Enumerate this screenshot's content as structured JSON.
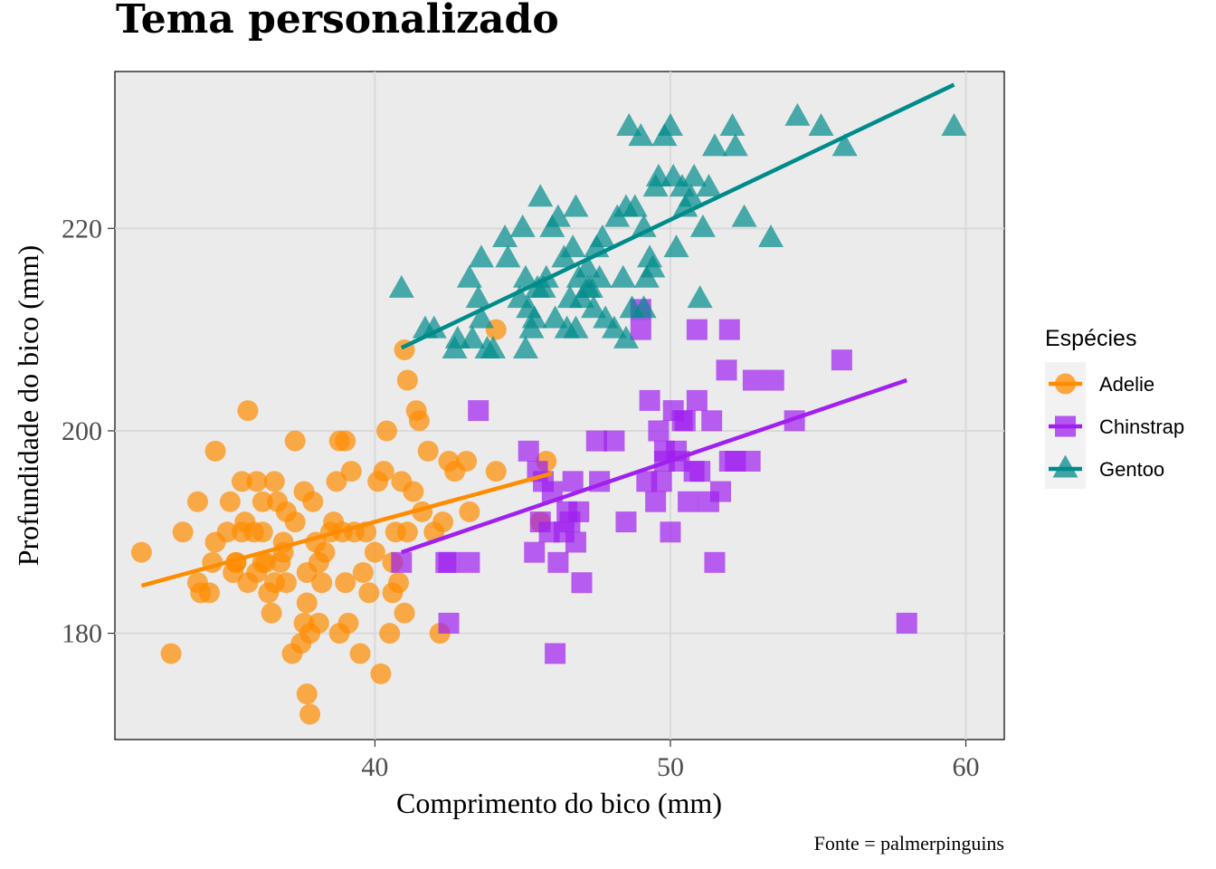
{
  "chart_data": {
    "type": "scatter",
    "title": "Tema personalizado",
    "xlabel": "Comprimento do bico (mm)",
    "ylabel": "Profundidade do bico (mm)",
    "caption": "Fonte = palmerpinguins",
    "xlim": [
      31.2,
      61.3
    ],
    "ylim": [
      169.5,
      235.5
    ],
    "x_ticks": [
      40,
      50,
      60
    ],
    "y_ticks": [
      180,
      200,
      220
    ],
    "x_tick_labels": [
      "40",
      "50",
      "60"
    ],
    "y_tick_labels": [
      "180",
      "200",
      "220"
    ],
    "grid": true,
    "legend": {
      "title": "Espécies",
      "position": "right"
    },
    "series": [
      {
        "name": "Adelie",
        "color": "#FF8C00",
        "marker": "circle",
        "trend": [
          [
            32.1,
            184.7
          ],
          [
            46.0,
            195.8
          ]
        ],
        "points": [
          [
            32.1,
            188
          ],
          [
            33.1,
            178
          ],
          [
            33.5,
            190
          ],
          [
            34.0,
            185
          ],
          [
            34.1,
            184
          ],
          [
            34.4,
            184
          ],
          [
            34.5,
            187
          ],
          [
            34.6,
            189
          ],
          [
            34.6,
            198
          ],
          [
            34.0,
            193
          ],
          [
            35.0,
            190
          ],
          [
            35.1,
            193
          ],
          [
            35.2,
            186
          ],
          [
            35.3,
            187
          ],
          [
            35.5,
            190
          ],
          [
            35.5,
            195
          ],
          [
            35.6,
            191
          ],
          [
            35.7,
            202
          ],
          [
            35.7,
            185
          ],
          [
            35.9,
            190
          ],
          [
            36.0,
            186
          ],
          [
            36.0,
            195
          ],
          [
            36.2,
            187
          ],
          [
            36.2,
            190
          ],
          [
            36.3,
            187
          ],
          [
            36.4,
            184
          ],
          [
            36.5,
            182
          ],
          [
            36.6,
            185
          ],
          [
            36.6,
            195
          ],
          [
            36.7,
            193
          ],
          [
            36.8,
            187
          ],
          [
            36.9,
            189
          ],
          [
            37.0,
            185
          ],
          [
            37.2,
            178
          ],
          [
            37.3,
            191
          ],
          [
            37.3,
            199
          ],
          [
            37.5,
            179
          ],
          [
            37.6,
            181
          ],
          [
            37.6,
            194
          ],
          [
            37.7,
            183
          ],
          [
            37.7,
            186
          ],
          [
            37.7,
            174
          ],
          [
            37.8,
            180
          ],
          [
            37.8,
            172
          ],
          [
            37.9,
            193
          ],
          [
            38.0,
            189
          ],
          [
            38.1,
            181
          ],
          [
            38.2,
            185
          ],
          [
            38.3,
            188
          ],
          [
            38.5,
            190
          ],
          [
            38.6,
            191
          ],
          [
            38.7,
            195
          ],
          [
            38.8,
            180
          ],
          [
            38.9,
            190
          ],
          [
            39.0,
            185
          ],
          [
            39.1,
            181
          ],
          [
            39.2,
            196
          ],
          [
            39.3,
            190
          ],
          [
            39.5,
            178
          ],
          [
            39.6,
            186
          ],
          [
            39.7,
            190
          ],
          [
            39.8,
            184
          ],
          [
            40.0,
            188
          ],
          [
            40.1,
            195
          ],
          [
            40.2,
            176
          ],
          [
            40.3,
            196
          ],
          [
            40.5,
            180
          ],
          [
            40.6,
            187
          ],
          [
            40.7,
            190
          ],
          [
            40.8,
            185
          ],
          [
            40.9,
            195
          ],
          [
            41.0,
            182
          ],
          [
            41.1,
            190
          ],
          [
            41.1,
            205
          ],
          [
            41.3,
            194
          ],
          [
            41.4,
            202
          ],
          [
            41.5,
            201
          ],
          [
            41.6,
            192
          ],
          [
            41.8,
            198
          ],
          [
            42.0,
            190
          ],
          [
            42.2,
            180
          ],
          [
            42.3,
            191
          ],
          [
            42.5,
            197
          ],
          [
            42.7,
            196
          ],
          [
            43.1,
            197
          ],
          [
            43.2,
            192
          ],
          [
            44.1,
            196
          ],
          [
            44.1,
            210
          ],
          [
            45.6,
            191
          ],
          [
            45.8,
            197
          ],
          [
            39.0,
            199
          ],
          [
            41.0,
            208
          ],
          [
            40.4,
            200
          ],
          [
            38.8,
            199
          ],
          [
            36.9,
            188
          ],
          [
            35.3,
            187
          ],
          [
            37.0,
            192
          ],
          [
            38.1,
            187
          ],
          [
            36.2,
            193
          ],
          [
            40.6,
            184
          ]
        ]
      },
      {
        "name": "Chinstrap",
        "color": "#A020F0",
        "marker": "square",
        "trend": [
          [
            40.9,
            188.0
          ],
          [
            58.0,
            205.0
          ]
        ],
        "points": [
          [
            40.9,
            187
          ],
          [
            42.4,
            187
          ],
          [
            42.5,
            187
          ],
          [
            42.5,
            181
          ],
          [
            43.2,
            187
          ],
          [
            43.5,
            202
          ],
          [
            45.2,
            198
          ],
          [
            45.4,
            188
          ],
          [
            45.5,
            196
          ],
          [
            45.6,
            191
          ],
          [
            45.7,
            195
          ],
          [
            45.9,
            190
          ],
          [
            46.0,
            194
          ],
          [
            46.1,
            178
          ],
          [
            46.2,
            187
          ],
          [
            46.4,
            190
          ],
          [
            46.5,
            192
          ],
          [
            46.6,
            191
          ],
          [
            46.7,
            195
          ],
          [
            46.8,
            189
          ],
          [
            46.9,
            192
          ],
          [
            47.0,
            185
          ],
          [
            47.5,
            199
          ],
          [
            47.6,
            195
          ],
          [
            48.1,
            199
          ],
          [
            48.5,
            191
          ],
          [
            49.0,
            210
          ],
          [
            49.0,
            212
          ],
          [
            49.2,
            195
          ],
          [
            49.3,
            203
          ],
          [
            49.5,
            193
          ],
          [
            49.6,
            200
          ],
          [
            49.7,
            195
          ],
          [
            49.8,
            198
          ],
          [
            50.0,
            190
          ],
          [
            50.1,
            202
          ],
          [
            50.2,
            198
          ],
          [
            50.3,
            197
          ],
          [
            50.4,
            201
          ],
          [
            50.5,
            201
          ],
          [
            50.6,
            193
          ],
          [
            50.8,
            196
          ],
          [
            50.9,
            203
          ],
          [
            51.0,
            196
          ],
          [
            51.3,
            193
          ],
          [
            51.4,
            201
          ],
          [
            51.5,
            187
          ],
          [
            51.7,
            194
          ],
          [
            51.9,
            206
          ],
          [
            52.0,
            197
          ],
          [
            52.2,
            197
          ],
          [
            52.0,
            210
          ],
          [
            52.7,
            197
          ],
          [
            52.8,
            205
          ],
          [
            53.5,
            205
          ],
          [
            54.2,
            201
          ],
          [
            55.8,
            207
          ],
          [
            58.0,
            181
          ],
          [
            50.9,
            210
          ],
          [
            49.8,
            197
          ]
        ]
      },
      {
        "name": "Gentoo",
        "color": "#008B8B",
        "marker": "triangle",
        "trend": [
          [
            40.9,
            208.2
          ],
          [
            59.6,
            234.2
          ]
        ],
        "points": [
          [
            40.9,
            214
          ],
          [
            41.7,
            210
          ],
          [
            42.0,
            210
          ],
          [
            42.7,
            208
          ],
          [
            42.8,
            209
          ],
          [
            43.2,
            215
          ],
          [
            43.3,
            209
          ],
          [
            43.5,
            213
          ],
          [
            43.6,
            217
          ],
          [
            43.8,
            208
          ],
          [
            44.0,
            208
          ],
          [
            44.4,
            219
          ],
          [
            44.5,
            217
          ],
          [
            44.9,
            213
          ],
          [
            45.0,
            220
          ],
          [
            45.1,
            215
          ],
          [
            45.2,
            212
          ],
          [
            45.3,
            210
          ],
          [
            45.4,
            211
          ],
          [
            45.5,
            214
          ],
          [
            45.6,
            223
          ],
          [
            45.7,
            214
          ],
          [
            45.8,
            215
          ],
          [
            46.0,
            220
          ],
          [
            46.1,
            211
          ],
          [
            46.2,
            221
          ],
          [
            46.4,
            217
          ],
          [
            46.5,
            210
          ],
          [
            46.6,
            213
          ],
          [
            46.7,
            218
          ],
          [
            46.8,
            222
          ],
          [
            46.9,
            215
          ],
          [
            47.0,
            213
          ],
          [
            47.2,
            216
          ],
          [
            47.3,
            214
          ],
          [
            47.4,
            212
          ],
          [
            47.5,
            218
          ],
          [
            47.6,
            215
          ],
          [
            47.7,
            219
          ],
          [
            47.8,
            211
          ],
          [
            48.1,
            210
          ],
          [
            48.2,
            221
          ],
          [
            48.4,
            215
          ],
          [
            48.5,
            222
          ],
          [
            48.6,
            230
          ],
          [
            48.7,
            212
          ],
          [
            48.8,
            222
          ],
          [
            49.0,
            229
          ],
          [
            49.1,
            212
          ],
          [
            49.2,
            215
          ],
          [
            49.3,
            217
          ],
          [
            49.4,
            216
          ],
          [
            49.5,
            224
          ],
          [
            49.6,
            225
          ],
          [
            49.8,
            229
          ],
          [
            50.0,
            230
          ],
          [
            50.1,
            225
          ],
          [
            50.2,
            218
          ],
          [
            50.4,
            224
          ],
          [
            50.5,
            222
          ],
          [
            50.7,
            223
          ],
          [
            50.8,
            225
          ],
          [
            51.0,
            213
          ],
          [
            51.1,
            220
          ],
          [
            51.3,
            224
          ],
          [
            51.5,
            228
          ],
          [
            52.1,
            230
          ],
          [
            52.2,
            228
          ],
          [
            52.5,
            221
          ],
          [
            53.4,
            219
          ],
          [
            54.3,
            231
          ],
          [
            55.1,
            230
          ],
          [
            55.9,
            228
          ],
          [
            59.6,
            230
          ],
          [
            48.5,
            209
          ],
          [
            45.1,
            208
          ],
          [
            46.8,
            210
          ],
          [
            47.2,
            214
          ],
          [
            49.1,
            220
          ],
          [
            43.6,
            211
          ]
        ]
      }
    ]
  }
}
